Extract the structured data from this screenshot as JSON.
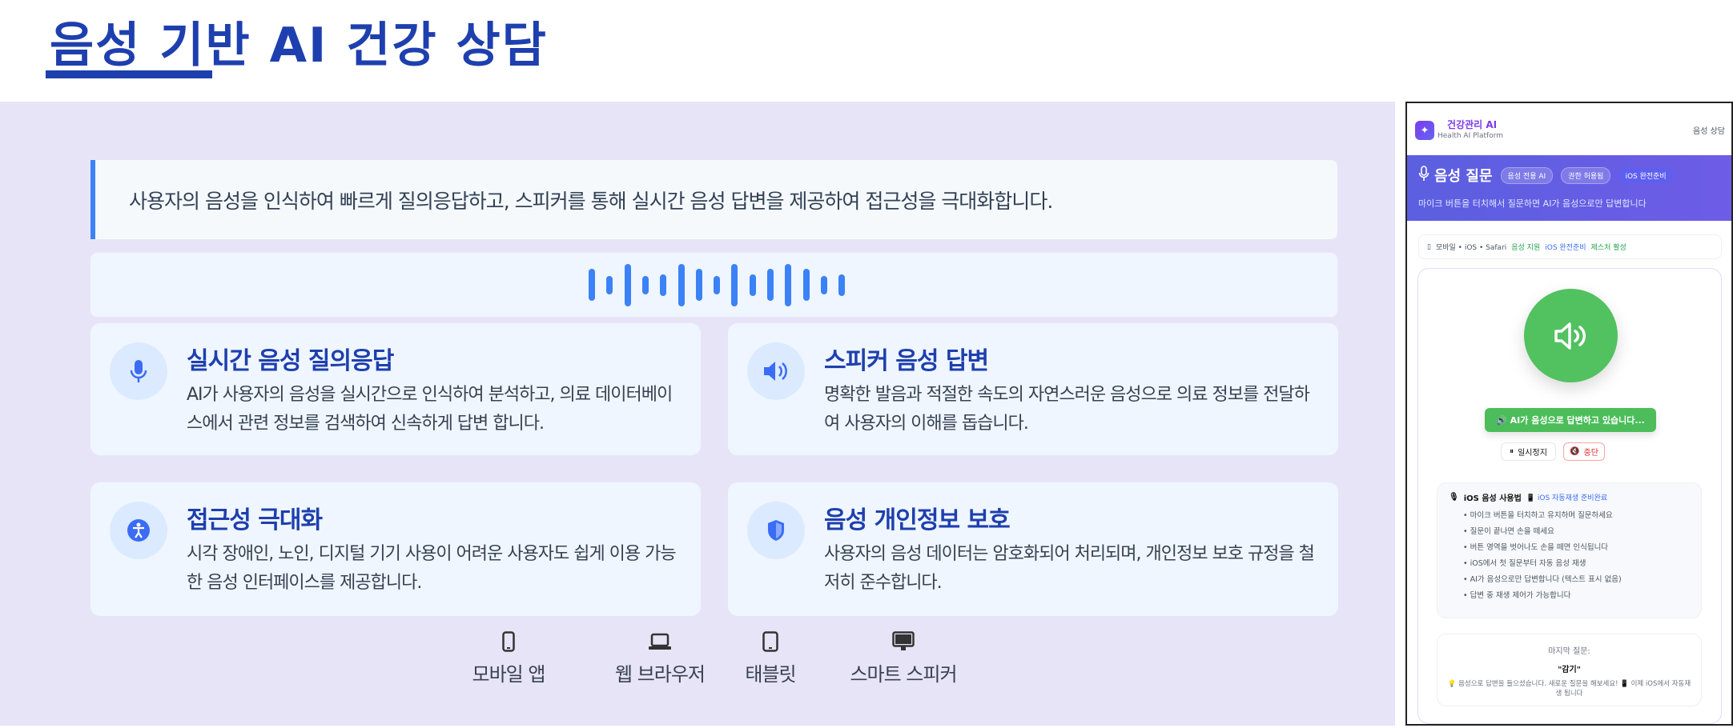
{
  "page_title": "음성 기반 AI 건강 상담",
  "intro": "사용자의 음성을 인식하여 빠르게 질의응답하고, 스피커를 통해 실시간 음성 답변을 제공하여 접근성을 극대화합니다.",
  "wave_levels": [
    0.75,
    0.43,
    1,
    0.43,
    0.5,
    1,
    0.75,
    0.43,
    1,
    0.5,
    0.75,
    1,
    0.75,
    0.43,
    0.5
  ],
  "accent": "#3b82f6",
  "features": [
    {
      "icon": "microphone-icon",
      "title": "실시간 음성 질의응답",
      "body": "AI가 사용자의 음성을 실시간으로 인식하여 분석하고, 의료 데이터베이스에서 관련 정보를 검색하여 신속하게 답변 합니다."
    },
    {
      "icon": "speaker-icon",
      "title": "스피커 음성 답변",
      "body": "명확한 발음과 적절한 속도의 자연스러운 음성으로 의료 정보를 전달하여 사용자의 이해를 돕습니다."
    },
    {
      "icon": "accessibility-icon",
      "title": "접근성 극대화",
      "body": "시각 장애인, 노인, 디지털 기기 사용이 어려운 사용자도 쉽게 이용 가능한 음성 인터페이스를 제공합니다."
    },
    {
      "icon": "shield-icon",
      "title": "음성 개인정보 보호",
      "body": "사용자의 음성 데이터는 암호화되어 처리되며, 개인정보 보호 규정을 철저히 준수합니다."
    }
  ],
  "platforms": [
    {
      "icon": "mobile-icon",
      "label": "모바일 앱"
    },
    {
      "icon": "laptop-icon",
      "label": "웹 브라우저"
    },
    {
      "icon": "tablet-icon",
      "label": "태블릿"
    },
    {
      "icon": "smart-speaker-icon",
      "label": "스마트 스피커"
    }
  ],
  "app": {
    "brand": "건강관리 AI",
    "brand_sub": "Health AI Platform",
    "nav": "음성 상담",
    "section_title": "음성 질문",
    "chips": [
      "음성 전용 AI",
      "권한 허용됨",
      "iOS 완전준비"
    ],
    "section_sub": "마이크 버튼을 터치해서 질문하면 AI가 음성으로만 답변합니다",
    "device": "모바일 • iOS • Safari",
    "device_tags": [
      "음성 지원",
      "iOS 완전준비",
      "제스처 활성"
    ],
    "status": "🔊 AI가 음성으로 답변하고 있습니다...",
    "pause": "일시정지",
    "stop": "중단",
    "howto_title": "iOS 음성 사용법",
    "howto_badge": "📱 iOS 자동재생 준비완료",
    "howto_items": [
      "마이크 버튼을 터치하고 유지하며 질문하세요",
      "질문이 끝나면 손을 떼세요",
      "버튼 영역을 벗어나도 손을 떼면 인식됩니다",
      "iOS에서 첫 질문부터 자동 음성 재생",
      "AI가 음성으로만 답변합니다 (텍스트 표시 없음)",
      "답변 중 재생 제어가 가능합니다"
    ],
    "last_label": "마지막 질문:",
    "last_value": "\"감기\"",
    "last_note": "💡 음성으로 답변을 들으셨습니다. 새로운 질문을 해보세요! 📱 이제 iOS에서 자동재생 됩니다"
  }
}
